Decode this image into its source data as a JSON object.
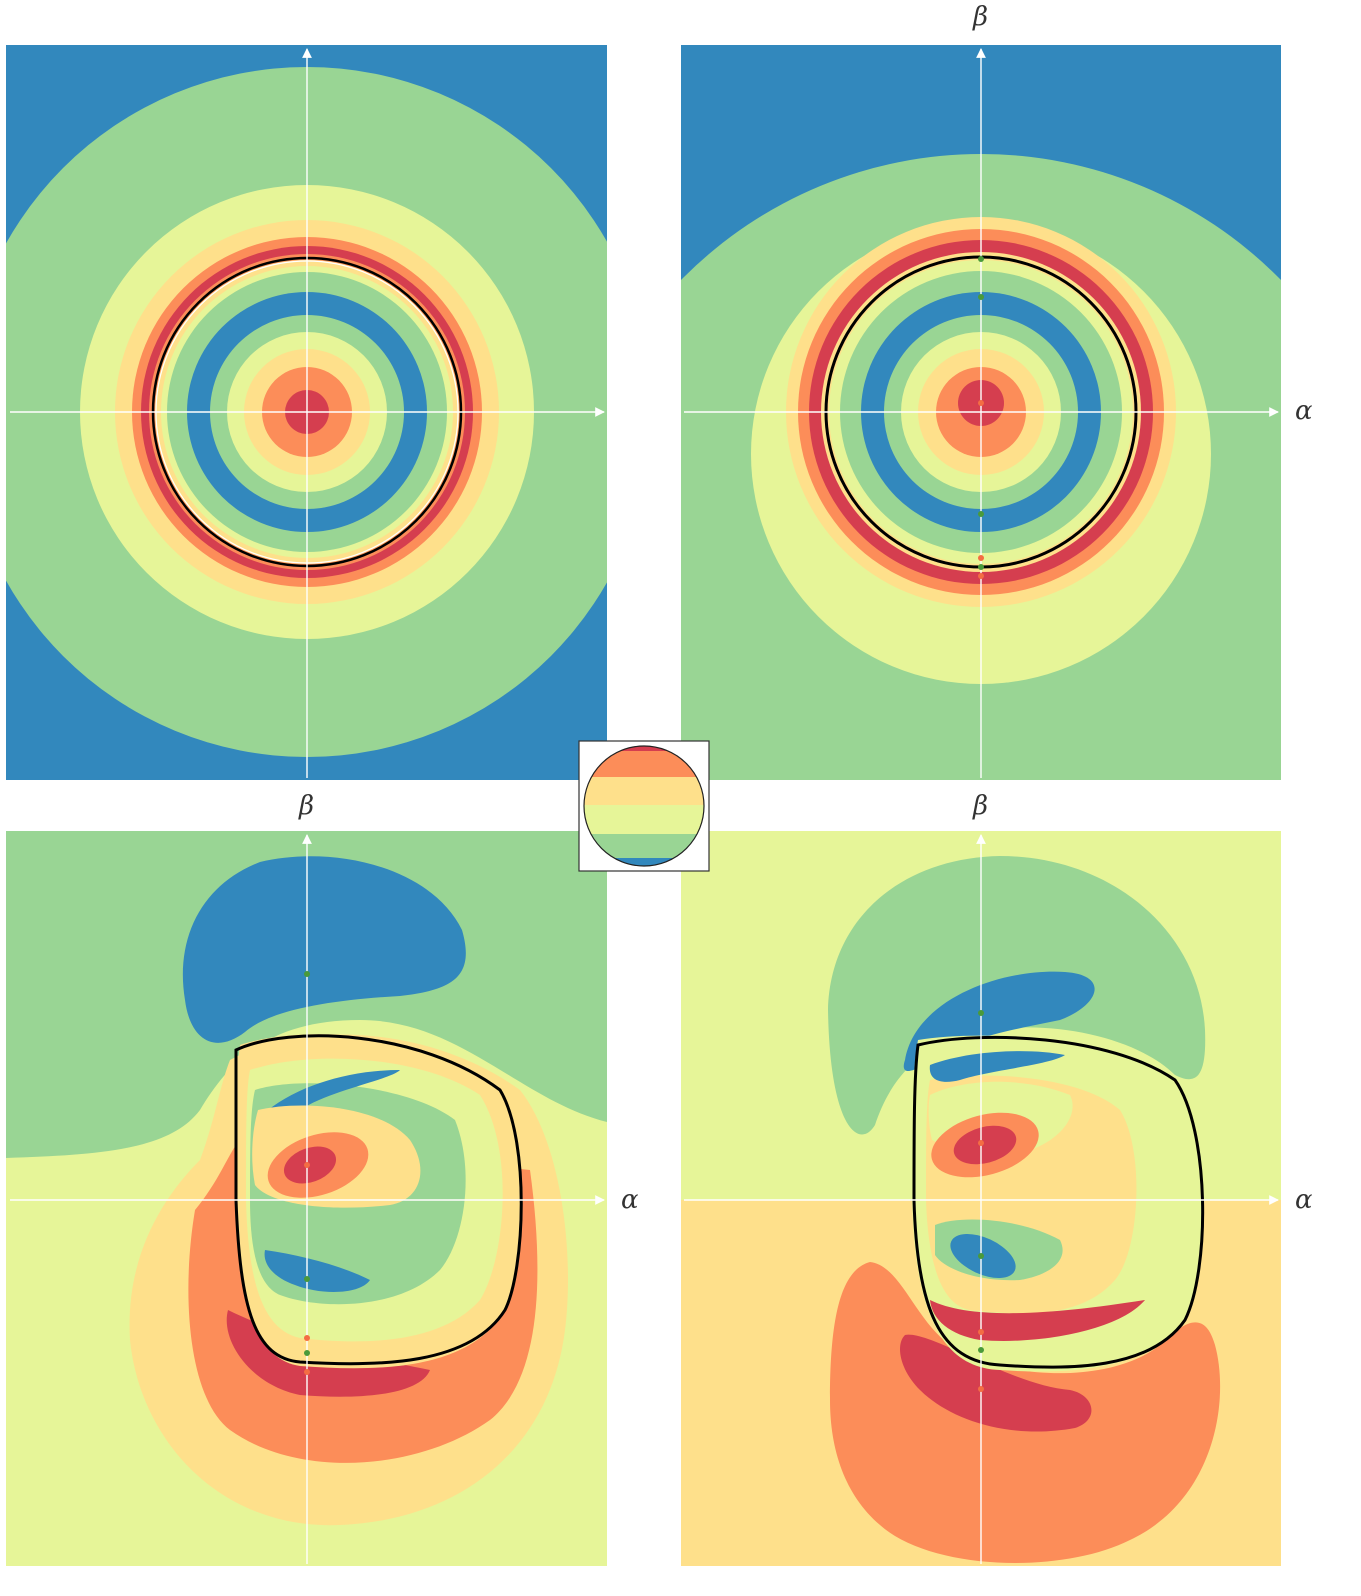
{
  "colors": {
    "darkred": "#d53e4f",
    "orange": "#f46d43",
    "lightorange": "#fc8d59",
    "peach": "#fee08b",
    "yellowgreen": "#e6f598",
    "lightgreen": "#99d594",
    "blue": "#3288bd",
    "axis": "#ffffff",
    "contour": "#000000"
  },
  "panels": [
    {
      "name": "panel-top-left",
      "x_label": "",
      "y_label": ""
    },
    {
      "name": "panel-top-right",
      "x_label": "α",
      "y_label": "β"
    },
    {
      "name": "panel-bottom-left",
      "x_label": "α",
      "y_label": "β"
    },
    {
      "name": "panel-bottom-right",
      "x_label": "α",
      "y_label": "β"
    }
  ],
  "inset": {
    "description_icon": "striped-disk-icon"
  }
}
